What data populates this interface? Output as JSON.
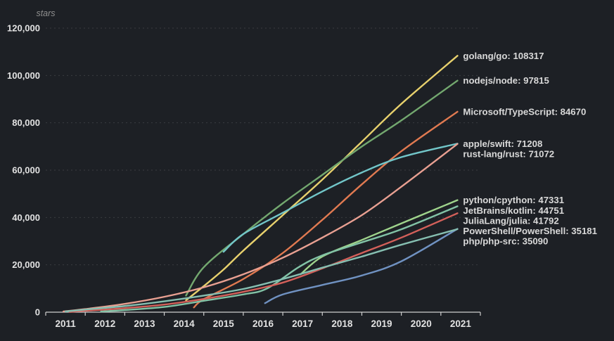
{
  "chart_data": {
    "type": "line",
    "title": "",
    "ylabel": "stars",
    "xlabel": "",
    "grid": "horizontal-dashed",
    "legend_position": "right-of-line-ends",
    "x_axis": {
      "years": [
        "2011",
        "2012",
        "2013",
        "2014",
        "2015",
        "2016",
        "2017",
        "2018",
        "2019",
        "2020",
        "2021"
      ],
      "range": [
        2011,
        2022
      ]
    },
    "y_axis": {
      "max": 120000,
      "ticks": [
        0,
        20000,
        40000,
        60000,
        80000,
        100000,
        120000
      ],
      "tick_labels": [
        "0",
        "20,000",
        "40,000",
        "60,000",
        "80,000",
        "100,000",
        "120,000"
      ]
    },
    "series": [
      {
        "name": "golang/go",
        "final_stars": 108317,
        "label": "golang/go: 108317",
        "color": "#e8d16d",
        "points": [
          [
            2014.55,
            5000
          ],
          [
            2015,
            11000
          ],
          [
            2015.5,
            18000
          ],
          [
            2016,
            26000
          ],
          [
            2017,
            41000
          ],
          [
            2018,
            56000
          ],
          [
            2019,
            72000
          ],
          [
            2020,
            88000
          ],
          [
            2021.42,
            108317
          ]
        ]
      },
      {
        "name": "nodejs/node",
        "final_stars": 97815,
        "label": "nodejs/node: 97815",
        "color": "#73a86f",
        "points": [
          [
            2014.55,
            7000
          ],
          [
            2015,
            19000
          ],
          [
            2016,
            33000
          ],
          [
            2017,
            46000
          ],
          [
            2018,
            58000
          ],
          [
            2019,
            70000
          ],
          [
            2020,
            81000
          ],
          [
            2021.42,
            97815
          ]
        ]
      },
      {
        "name": "Microsoft/TypeScript",
        "final_stars": 84670,
        "label": "Microsoft/TypeScript: 84670",
        "color": "#e17a51",
        "points": [
          [
            2014.75,
            2000
          ],
          [
            2015,
            5500
          ],
          [
            2016,
            14000
          ],
          [
            2017,
            25000
          ],
          [
            2018,
            39000
          ],
          [
            2019,
            54000
          ],
          [
            2020,
            68000
          ],
          [
            2021.42,
            84670
          ]
        ]
      },
      {
        "name": "apple/swift",
        "final_stars": 71208,
        "label": "apple/swift: 71208",
        "color": "#72c6c9",
        "points": [
          [
            2015.5,
            25500
          ],
          [
            2016,
            33000
          ],
          [
            2017,
            42000
          ],
          [
            2018,
            51000
          ],
          [
            2019,
            59000
          ],
          [
            2020,
            65500
          ],
          [
            2021.42,
            71208
          ]
        ]
      },
      {
        "name": "rust-lang/rust",
        "final_stars": 71072,
        "label": "rust-lang/rust: 71072",
        "color": "#e9a092",
        "points": [
          [
            2011.45,
            300
          ],
          [
            2012,
            1300
          ],
          [
            2013,
            3500
          ],
          [
            2014,
            6500
          ],
          [
            2015,
            10500
          ],
          [
            2016,
            16000
          ],
          [
            2017,
            23000
          ],
          [
            2018,
            31500
          ],
          [
            2019,
            41000
          ],
          [
            2020,
            53000
          ],
          [
            2021.42,
            71072
          ]
        ]
      },
      {
        "name": "python/cpython",
        "final_stars": 47331,
        "label": "python/cpython: 47331",
        "color": "#9fd48c",
        "points": [
          [
            2017.45,
            16000
          ],
          [
            2018,
            23500
          ],
          [
            2019,
            30500
          ],
          [
            2020,
            37500
          ],
          [
            2021.42,
            47331
          ]
        ]
      },
      {
        "name": "JetBrains/kotlin",
        "final_stars": 44751,
        "label": "JetBrains/kotlin: 44751",
        "color": "#82c3a6",
        "points": [
          [
            2012.4,
            300
          ],
          [
            2013,
            900
          ],
          [
            2014,
            2200
          ],
          [
            2015,
            4800
          ],
          [
            2016,
            7500
          ],
          [
            2016.6,
            10000
          ],
          [
            2017.4,
            19000
          ],
          [
            2018,
            24000
          ],
          [
            2019,
            29500
          ],
          [
            2020,
            35000
          ],
          [
            2021.42,
            44751
          ]
        ]
      },
      {
        "name": "JuliaLang/julia",
        "final_stars": 41792,
        "label": "JuliaLang/julia: 41792",
        "color": "#d4605a",
        "points": [
          [
            2011.6,
            100
          ],
          [
            2012,
            600
          ],
          [
            2013,
            1700
          ],
          [
            2014,
            3200
          ],
          [
            2015,
            5600
          ],
          [
            2016,
            8600
          ],
          [
            2017,
            12500
          ],
          [
            2018,
            18500
          ],
          [
            2019,
            25000
          ],
          [
            2020,
            31500
          ],
          [
            2021.42,
            41792
          ]
        ]
      },
      {
        "name": "PowerShell/PowerShell",
        "final_stars": 35181,
        "label": "PowerShell/PowerShell: 35181",
        "color": "#7092c2",
        "points": [
          [
            2016.55,
            3800
          ],
          [
            2017,
            7500
          ],
          [
            2018,
            11500
          ],
          [
            2019,
            15500
          ],
          [
            2020,
            21500
          ],
          [
            2021.42,
            35181
          ]
        ]
      },
      {
        "name": "php/php-src",
        "final_stars": 35090,
        "label": "php/php-src: 35090",
        "color": "#86bfb1",
        "points": [
          [
            2011.5,
            300
          ],
          [
            2012,
            1100
          ],
          [
            2013,
            2600
          ],
          [
            2014,
            4600
          ],
          [
            2015,
            7000
          ],
          [
            2016,
            9800
          ],
          [
            2017,
            14000
          ],
          [
            2018,
            18800
          ],
          [
            2019,
            23500
          ],
          [
            2020,
            28500
          ],
          [
            2021.42,
            35090
          ]
        ]
      }
    ]
  },
  "colors": {
    "background": "#1d2025",
    "axis": "#cfcfcf",
    "grid": "rgba(255,255,255,0.13)",
    "tick_text": "#e2e2e2",
    "series_label_text": "#d9d9d9",
    "axis_title_text": "#8f8f8f"
  }
}
